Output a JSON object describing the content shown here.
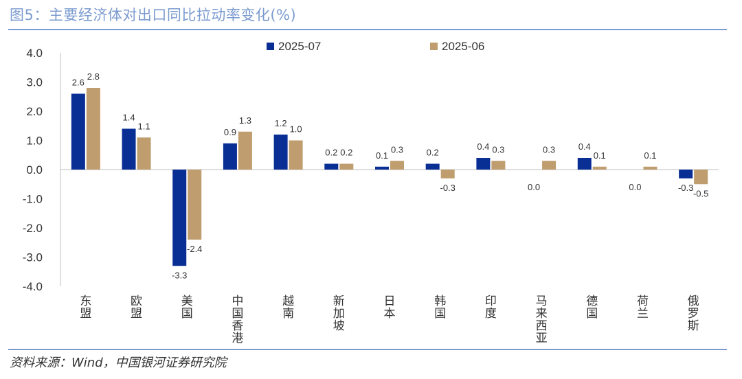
{
  "title": "图5：主要经济体对出口同比拉动率变化(%)",
  "source": "资料来源：Wind，中国银河证券研究院",
  "chart_data": {
    "type": "bar",
    "categories": [
      "东盟",
      "欧盟",
      "美国",
      "中国香港",
      "越南",
      "新加坡",
      "日本",
      "韩国",
      "印度",
      "马来西亚",
      "德国",
      "荷兰",
      "俄罗斯"
    ],
    "series": [
      {
        "name": "2025-07",
        "color": "#0a2f94",
        "values": [
          2.6,
          1.4,
          -3.3,
          0.9,
          1.2,
          0.2,
          0.1,
          0.2,
          0.4,
          0.0,
          0.4,
          0.0,
          -0.3
        ]
      },
      {
        "name": "2025-06",
        "color": "#bf9d6e",
        "values": [
          2.8,
          1.1,
          -2.4,
          1.3,
          1.0,
          0.2,
          0.3,
          -0.3,
          0.3,
          0.3,
          0.1,
          0.1,
          -0.5
        ]
      }
    ],
    "ylim": [
      -4.0,
      4.0
    ],
    "yticks": [
      "4.0",
      "3.0",
      "2.0",
      "1.0",
      "0.0",
      "-1.0",
      "-2.0",
      "-3.0",
      "-4.0"
    ],
    "legend_position": "top-center",
    "grid": false
  }
}
